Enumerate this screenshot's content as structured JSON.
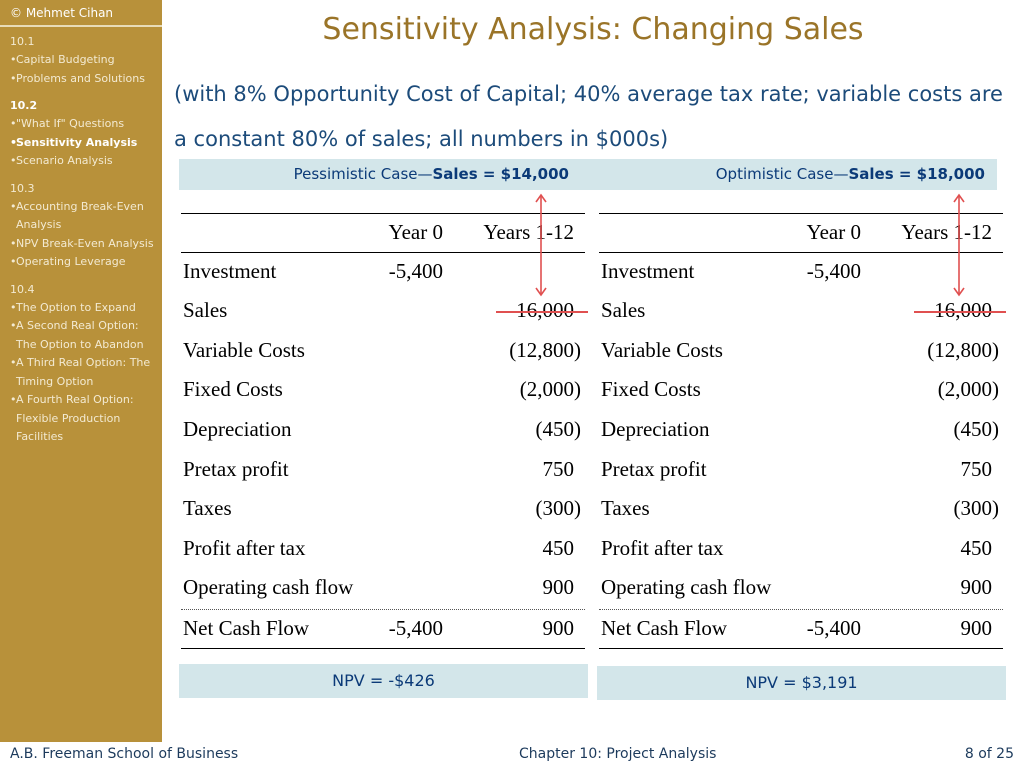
{
  "sidebar": {
    "copyright": "© Mehmet Cihan",
    "groups": [
      {
        "head": "10.1",
        "items": [
          "Capital Budgeting",
          "Problems and Solutions"
        ]
      },
      {
        "head": "10.2",
        "items": [
          "\"What If\" Questions",
          "Sensitivity Analysis",
          "Scenario Analysis"
        ]
      },
      {
        "head": "10.3",
        "items": [
          "Accounting Break-Even Analysis",
          "NPV Break-Even Analysis",
          "Operating Leverage"
        ]
      },
      {
        "head": "10.4",
        "items": [
          "The Option to Expand",
          "A Second Real Option: The Option to Abandon",
          "A Third Real Option: The Timing Option",
          "A Fourth Real Option: Flexible Production Facilities"
        ]
      }
    ]
  },
  "title": "Sensitivity Analysis: Changing Sales",
  "subtitle": "(with 8% Opportunity Cost of Capital; 40% average tax rate; variable costs are a constant 80% of sales; all numbers in $000s)",
  "cases": {
    "left": {
      "label_prefix": "Pessimistic Case—",
      "label_bold": "Sales = $14,000"
    },
    "right": {
      "label_prefix": "Optimistic Case—",
      "label_bold": "Sales = $18,000"
    }
  },
  "table": {
    "headers": [
      "",
      "Year 0",
      "Years 1-12"
    ],
    "rows": [
      [
        "Investment",
        "-5,400",
        ""
      ],
      [
        "Sales",
        "",
        "16,000"
      ],
      [
        "Variable Costs",
        "",
        "(12,800)"
      ],
      [
        "Fixed Costs",
        "",
        "(2,000)"
      ],
      [
        "Depreciation",
        "",
        "(450)"
      ],
      [
        "Pretax profit",
        "",
        "750"
      ],
      [
        "Taxes",
        "",
        "(300)"
      ],
      [
        "Profit after tax",
        "",
        "450"
      ],
      [
        "Operating cash flow",
        "",
        "900"
      ],
      [
        "Net Cash Flow",
        "-5,400",
        "900"
      ]
    ]
  },
  "npv": {
    "left": "NPV = -$426",
    "right": "NPV = $3,191"
  },
  "footer": {
    "left": "A.B. Freeman School of Business",
    "middle": "Chapter 10: Project Analysis",
    "right": "8 of 25"
  },
  "colors": {
    "sidebar": "#b8913a",
    "title": "#9a7428",
    "subtitle": "#1c4b7a",
    "band": "#d3e6ea",
    "arrow": "#e05050"
  }
}
